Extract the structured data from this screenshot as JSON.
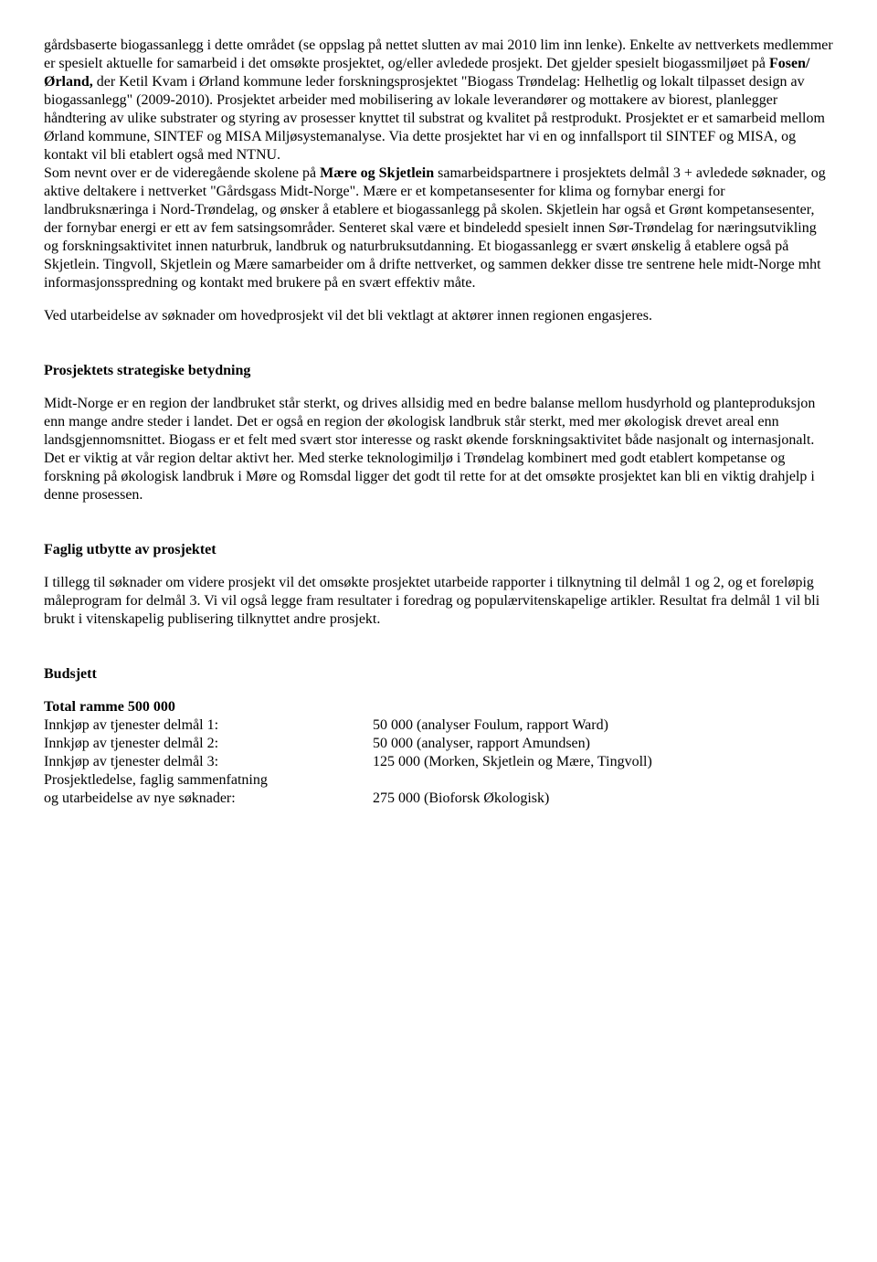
{
  "paragraphs": {
    "p1": "gårdsbaserte biogassanlegg i dette området (se oppslag på nettet slutten av mai 2010 lim inn lenke). Enkelte av nettverkets medlemmer er spesielt aktuelle for samarbeid i det omsøkte prosjektet, og/eller avledede prosjekt. Det gjelder spesielt biogassmiljøet på Fosen/Ørland, der Ketil Kvam i Ørland kommune leder forskningsprosjektet \"Biogass Trøndelag: Helhetlig og lokalt tilpasset design av biogassanlegg\" (2009-2010). Prosjektet arbeider med mobilisering av lokale leverandører og mottakere av biorest, planlegger håndtering av ulike substrater og styring av prosesser knyttet til substrat og kvalitet på restprodukt. Prosjektet er et samarbeid mellom Ørland kommune, SINTEF og MISA Miljøsystemanalyse. Via dette prosjektet har vi en og innfallsport til SINTEF og MISA, og kontakt vil bli etablert også med NTNU.",
    "p1_bold_a": "Fosen/Ørland,",
    "p2a": "Som nevnt over er de videregående skolene på ",
    "p2_bold_a": "Mære og Skjetlein",
    "p2b": " samarbeidspartnere i prosjektets delmål 3 + avledede søknader, og aktive deltakere i nettverket \"Gårdsgass Midt-Norge\". Mære er et kompetansesenter for klima og fornybar energi for landbruksnæringa i Nord-Trøndelag, og ønsker å etablere et biogassanlegg på skolen. Skjetlein har også et Grønt kompetansesenter, der fornybar energi er ett av fem satsingsområder. Senteret skal være et bindeledd spesielt innen Sør-Trøndelag for næringsutvikling og forskningsaktivitet innen naturbruk, landbruk og naturbruksutdanning. Et biogassanlegg er svært ønskelig å etablere også på Skjetlein. Tingvoll, Skjetlein og Mære samarbeider om å drifte nettverket, og sammen dekker disse tre sentrene hele midt-Norge mht informasjonsspredning og kontakt med brukere på en svært effektiv måte.",
    "p3": "Ved utarbeidelse av søknader om hovedprosjekt vil det bli vektlagt at aktører innen regionen engasjeres.",
    "h1": "Prosjektets strategiske betydning",
    "p4": "Midt-Norge er en region der landbruket står sterkt, og drives allsidig med en bedre balanse mellom husdyrhold og planteproduksjon enn mange andre steder i landet. Det er også en region der økologisk landbruk står sterkt, med mer økologisk drevet areal enn landsgjennomsnittet. Biogass er et felt med svært stor interesse og raskt økende forskningsaktivitet både nasjonalt og internasjonalt. Det er viktig at vår region deltar aktivt her. Med sterke teknologimiljø i Trøndelag kombinert med godt etablert kompetanse og forskning på økologisk landbruk i Møre og Romsdal ligger det godt til rette for at det omsøkte prosjektet kan bli en viktig drahjelp i denne prosessen.",
    "h2": "Faglig utbytte av prosjektet",
    "p5": "I tillegg til søknader om videre prosjekt vil det omsøkte prosjektet utarbeide rapporter i tilknytning til delmål 1 og 2, og et foreløpig måleprogram for delmål 3. Vi vil også legge fram resultater i foredrag og populærvitenskapelige artikler. Resultat fra delmål 1 vil bli brukt i vitenskapelig publisering tilknyttet andre prosjekt.",
    "h3": "Budsjett",
    "budget_total": "Total ramme 500 000",
    "budget": [
      {
        "label": "Innkjøp av tjenester delmål 1:",
        "amount": "50 000 (analyser Foulum, rapport Ward)"
      },
      {
        "label": "Innkjøp av tjenester delmål 2:",
        "amount": "50 000 (analyser, rapport Amundsen)"
      },
      {
        "label": "Innkjøp av tjenester delmål 3:",
        "amount": "125 000 (Morken, Skjetlein og Mære, Tingvoll)"
      },
      {
        "label": "Prosjektledelse, faglig sammenfatning",
        "amount": ""
      },
      {
        "label": "og utarbeidelse av nye søknader:",
        "amount": "275 000 (Bioforsk Økologisk)"
      }
    ]
  }
}
